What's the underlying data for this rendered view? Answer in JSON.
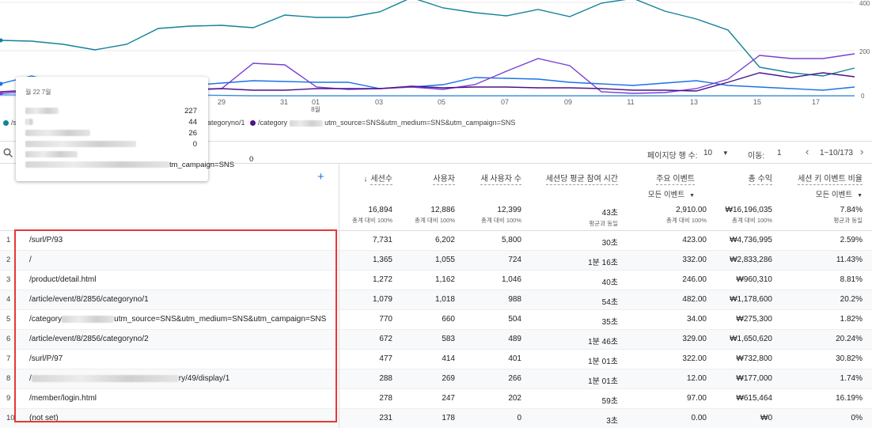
{
  "chart_data": {
    "type": "line",
    "x_ticks": [
      "29",
      "31",
      "01\n8월",
      "03",
      "05",
      "07",
      "09",
      "11",
      "13",
      "15",
      "17"
    ],
    "y_ticks": [
      "400",
      "200",
      "0"
    ],
    "series_colors": [
      "#1a73e8",
      "#12939a",
      "#7b2cbf",
      "#4a148c",
      "#1e88e5"
    ]
  },
  "legend": {
    "item1_prefix": "/s",
    "item2_suffix": "ategoryno/1",
    "item3_prefix": "/category",
    "item3_suffix": "utm_source=SNS&utm_medium=SNS&utm_campaign=SNS"
  },
  "tooltip": {
    "title": "월 22 7월",
    "rows": [
      {
        "value": "227"
      },
      {
        "value": "44"
      },
      {
        "value": "26"
      },
      {
        "value": "0"
      }
    ],
    "last_suffix": "tm_campaign=SNS",
    "last_value": "0"
  },
  "toolbar": {
    "rows_per_page_label": "페이지당 행 수:",
    "rows_per_page_value": "10",
    "goto_label": "이동:",
    "goto_value": "1",
    "range": "1~10/173"
  },
  "columns": [
    {
      "label": "세션수",
      "sort": "↓"
    },
    {
      "label": "사용자"
    },
    {
      "label": "새 사용자 수"
    },
    {
      "label": "세션당 평균 참여 시간"
    },
    {
      "label": "주요 이벤트",
      "sub": "모든 이벤트"
    },
    {
      "label": "총 수익"
    },
    {
      "label": "세션 키 이벤트 비율",
      "sub": "모든 이벤트"
    }
  ],
  "totals": [
    {
      "value": "16,894",
      "note": "총계 대비 100%"
    },
    {
      "value": "12,886",
      "note": "총계 대비 100%"
    },
    {
      "value": "12,399",
      "note": "총계 대비 100%"
    },
    {
      "value": "43초",
      "note": "평균과 동일"
    },
    {
      "value": "2,910.00",
      "note": "총계 대비 100%"
    },
    {
      "value": "₩16,196,035",
      "note": "총계 대비 100%"
    },
    {
      "value": "7.84%",
      "note": "평균과 동일"
    }
  ],
  "rows": [
    {
      "idx": "1",
      "path": "/surl/P/93",
      "vals": [
        "7,731",
        "6,202",
        "5,800",
        "30초",
        "423.00",
        "₩4,736,995",
        "2.59%"
      ]
    },
    {
      "idx": "2",
      "path": "/",
      "vals": [
        "1,365",
        "1,055",
        "724",
        "1분 16초",
        "332.00",
        "₩2,833,286",
        "11.43%"
      ]
    },
    {
      "idx": "3",
      "path": "/product/detail.html",
      "vals": [
        "1,272",
        "1,162",
        "1,046",
        "40초",
        "246.00",
        "₩960,310",
        "8.81%"
      ]
    },
    {
      "idx": "4",
      "path": "/article/event/8/2856/categoryno/1",
      "vals": [
        "1,079",
        "1,018",
        "988",
        "54초",
        "482.00",
        "₩1,178,600",
        "20.2%"
      ]
    },
    {
      "idx": "5",
      "path_prefix": "/category",
      "path": "utm_source=SNS&utm_medium=SNS&utm_campaign=SNS",
      "vals": [
        "770",
        "660",
        "504",
        "35초",
        "34.00",
        "₩275,300",
        "1.82%"
      ]
    },
    {
      "idx": "6",
      "path": "/article/event/8/2856/categoryno/2",
      "vals": [
        "672",
        "583",
        "489",
        "1분 46초",
        "329.00",
        "₩1,650,620",
        "20.24%"
      ]
    },
    {
      "idx": "7",
      "path": "/surl/P/97",
      "vals": [
        "477",
        "414",
        "401",
        "1분 01초",
        "322.00",
        "₩732,800",
        "30.82%"
      ]
    },
    {
      "idx": "8",
      "path_prefix": "/",
      "path": "ry/49/display/1",
      "vals": [
        "288",
        "269",
        "266",
        "1분 01초",
        "12.00",
        "₩177,000",
        "1.74%"
      ]
    },
    {
      "idx": "9",
      "path": "/member/login.html",
      "vals": [
        "278",
        "247",
        "202",
        "59초",
        "97.00",
        "₩615,464",
        "16.19%"
      ]
    },
    {
      "idx": "10",
      "path": "(not set)",
      "vals": [
        "231",
        "178",
        "0",
        "3초",
        "0.00",
        "₩0",
        "0%"
      ]
    }
  ]
}
